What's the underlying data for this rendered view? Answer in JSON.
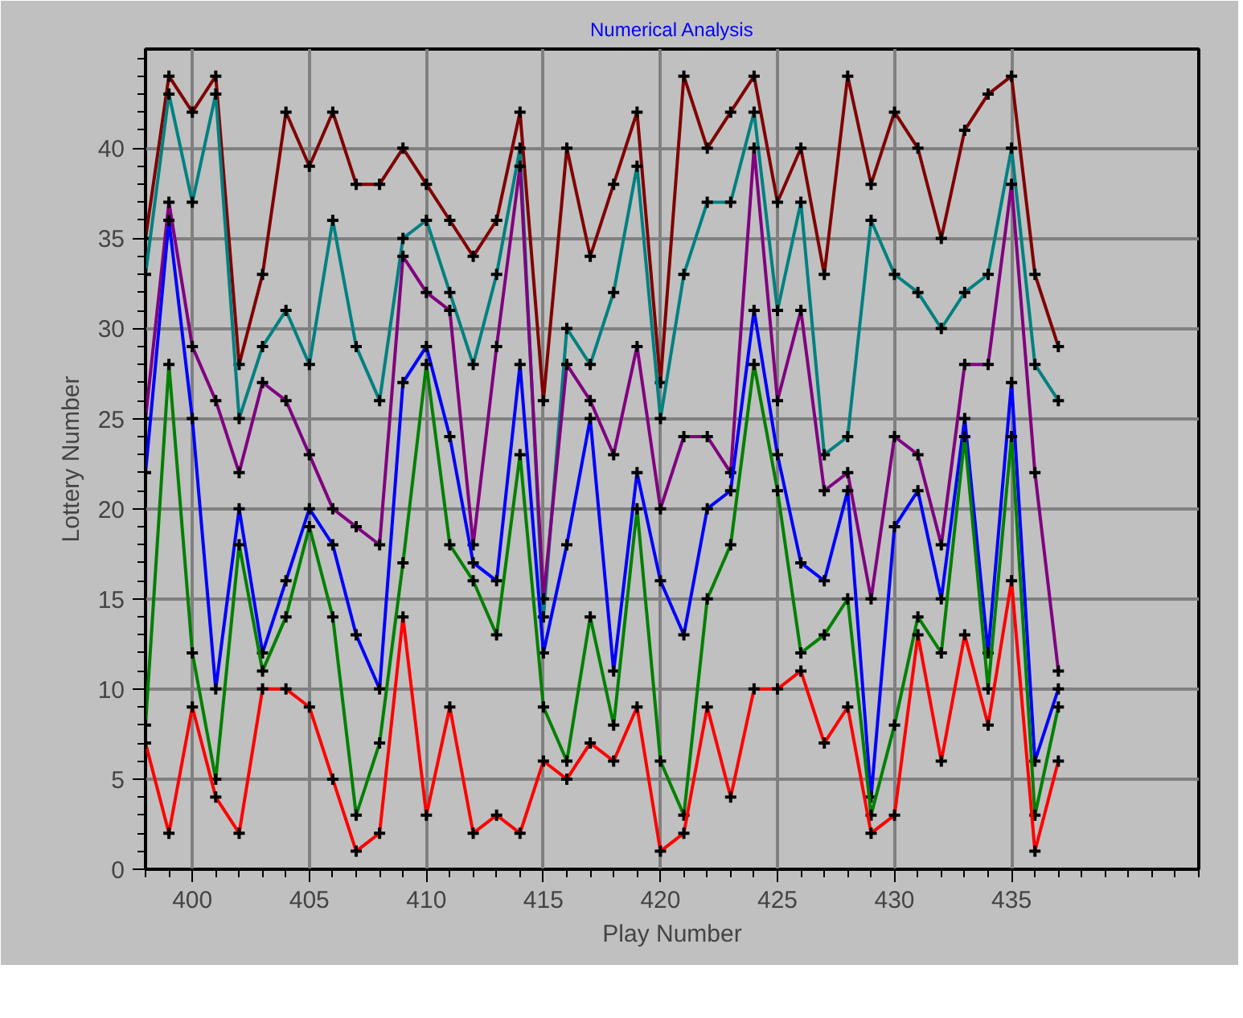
{
  "chart_data": {
    "type": "line",
    "title": "Numerical Analysis",
    "xlabel": "Play Number",
    "ylabel": "Lottery Number",
    "x": [
      398,
      399,
      400,
      401,
      402,
      403,
      404,
      405,
      406,
      407,
      408,
      409,
      410,
      411,
      412,
      413,
      414,
      415,
      416,
      417,
      418,
      419,
      420,
      421,
      422,
      423,
      424,
      425,
      426,
      427,
      428,
      429,
      430,
      431,
      432,
      433,
      434,
      435,
      436,
      437
    ],
    "series": [
      {
        "color": "#800000",
        "values": [
          35,
          44,
          42,
          44,
          28,
          33,
          42,
          39,
          42,
          38,
          38,
          40,
          38,
          36,
          34,
          36,
          42,
          26,
          40,
          34,
          38,
          42,
          27,
          44,
          40,
          42,
          44,
          37,
          40,
          33,
          44,
          38,
          42,
          40,
          35,
          41,
          43,
          44,
          33,
          29
        ]
      },
      {
        "color": "#008080",
        "values": [
          33,
          43,
          37,
          43,
          25,
          29,
          31,
          28,
          36,
          29,
          26,
          35,
          36,
          32,
          28,
          33,
          40,
          14,
          30,
          28,
          32,
          39,
          25,
          33,
          37,
          37,
          42,
          31,
          37,
          23,
          24,
          36,
          33,
          32,
          30,
          32,
          33,
          40,
          28,
          26
        ]
      },
      {
        "color": "#800080",
        "values": [
          25,
          37,
          29,
          26,
          22,
          27,
          26,
          23,
          20,
          19,
          18,
          34,
          32,
          31,
          18,
          29,
          39,
          15,
          28,
          26,
          23,
          29,
          20,
          24,
          24,
          22,
          40,
          26,
          31,
          21,
          22,
          15,
          24,
          23,
          18,
          28,
          28,
          38,
          22,
          11
        ]
      },
      {
        "color": "#0000ff",
        "values": [
          22,
          36,
          25,
          10,
          20,
          12,
          16,
          20,
          18,
          13,
          10,
          27,
          29,
          24,
          17,
          16,
          28,
          12,
          18,
          25,
          11,
          22,
          16,
          13,
          20,
          21,
          31,
          23,
          17,
          16,
          21,
          4,
          19,
          21,
          15,
          25,
          12,
          27,
          6,
          10
        ]
      },
      {
        "color": "#008000",
        "values": [
          8,
          28,
          12,
          5,
          18,
          11,
          14,
          19,
          14,
          3,
          7,
          17,
          28,
          18,
          16,
          13,
          23,
          9,
          6,
          14,
          8,
          20,
          6,
          3,
          15,
          18,
          28,
          21,
          12,
          13,
          15,
          3,
          8,
          14,
          12,
          24,
          10,
          24,
          3,
          9
        ]
      },
      {
        "color": "#ff0000",
        "values": [
          7,
          2,
          9,
          4,
          2,
          10,
          10,
          9,
          5,
          1,
          2,
          14,
          3,
          9,
          2,
          3,
          2,
          6,
          5,
          7,
          6,
          9,
          1,
          2,
          9,
          4,
          10,
          10,
          11,
          7,
          9,
          2,
          3,
          13,
          6,
          13,
          8,
          16,
          1,
          6
        ]
      }
    ],
    "xlim": [
      398,
      443
    ],
    "ylim": [
      0,
      45.5
    ],
    "xticks": [
      400,
      405,
      410,
      415,
      420,
      425,
      430,
      435
    ],
    "yticks": [
      0,
      5,
      10,
      15,
      20,
      25,
      30,
      35,
      40
    ],
    "grid": true,
    "marker": "cross",
    "line_style": "solid"
  }
}
